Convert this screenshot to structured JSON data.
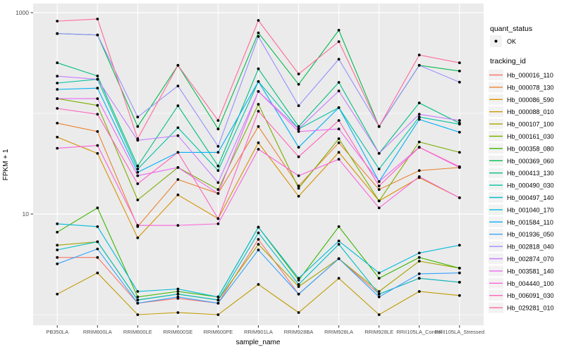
{
  "figure": {
    "xlabel": "sample_name",
    "ylabel": "FPKM + 1"
  },
  "legend": {
    "quant_status": {
      "title": "quant_status",
      "items": [
        {
          "label": "OK",
          "symbol": "black-point"
        }
      ]
    },
    "tracking": {
      "title": "tracking_id"
    }
  },
  "colors": {
    "panel_bg": "#EBEBEB",
    "grid": "#FFFFFF",
    "point": "#000000",
    "tick_text": "#4D4D4D",
    "legend_key_bg": "#F2F2F2",
    "tick_mark": "#333333"
  },
  "chart_data": {
    "type": "line",
    "title": "",
    "xlabel": "sample_name",
    "ylabel": "FPKM + 1",
    "y_scale": "log10",
    "ylim": [
      0.8,
      1200
    ],
    "grid": true,
    "legend_position": "right",
    "y_major_breaks": [
      {
        "value": 1000,
        "label": "1000"
      },
      {
        "value": 10,
        "label": "10"
      }
    ],
    "y_minor_breaks": [
      100,
      1
    ],
    "quant_status_of_all_points": "OK",
    "categories": [
      "PB350LA",
      "RRIM600LA",
      "RRIM600LE",
      "RRIM600SE",
      "RRIM600PE",
      "RRIM901LA",
      "RRIM928BA",
      "RRIM928LA",
      "RRIM928LE",
      "RRII105LA_Control",
      "RRII105LA_Stressed"
    ],
    "series": [
      {
        "name": "Hb_000016_110",
        "color": "#F8766D",
        "values": [
          3.7,
          3.7,
          1.3,
          1.45,
          1.3,
          5.6,
          1.6,
          3.6,
          1.6,
          2.3,
          2.1
        ]
      },
      {
        "name": "Hb_000078_130",
        "color": "#EA8331",
        "values": [
          80,
          66,
          7.5,
          22,
          16,
          74,
          19,
          51,
          17.5,
          27,
          29
        ]
      },
      {
        "name": "Hb_000086_590",
        "color": "#D89000",
        "values": [
          58,
          40,
          5.8,
          15.5,
          9,
          51,
          15,
          41,
          13.5,
          23,
          14.5
        ]
      },
      {
        "name": "Hb_000088_010",
        "color": "#C09B00",
        "values": [
          1.6,
          2.6,
          1.0,
          1.05,
          1.0,
          2.0,
          1.05,
          2.3,
          1.0,
          1.7,
          1.55
        ]
      },
      {
        "name": "Hb_000107_100",
        "color": "#A3A500",
        "values": [
          4.9,
          5.3,
          1.4,
          1.6,
          1.4,
          5.0,
          1.9,
          3.6,
          1.7,
          3.4,
          2.9
        ]
      },
      {
        "name": "Hb_000161_030",
        "color": "#7CAE00",
        "values": [
          140,
          120,
          13.8,
          29,
          17.5,
          123,
          18,
          56,
          13.5,
          52,
          41
        ]
      },
      {
        "name": "Hb_000358_080",
        "color": "#39B600",
        "values": [
          6.6,
          11.5,
          1.5,
          1.7,
          1.5,
          7.4,
          2.2,
          7.5,
          2.3,
          3.7,
          2.9
        ]
      },
      {
        "name": "Hb_000369_060",
        "color": "#00BB4E",
        "values": [
          620,
          600,
          74,
          300,
          70,
          630,
          194,
          670,
          74,
          300,
          263
        ]
      },
      {
        "name": "Hb_000413_130",
        "color": "#00BF7D",
        "values": [
          318,
          235,
          30,
          119,
          30,
          277,
          74,
          203,
          40,
          127,
          80
        ]
      },
      {
        "name": "Hb_000490_030",
        "color": "#00C1A3",
        "values": [
          200,
          218,
          28,
          72,
          27,
          207,
          70,
          114,
          28,
          92,
          78
        ]
      },
      {
        "name": "Hb_000497_140",
        "color": "#00BFC4",
        "values": [
          4.4,
          5.3,
          1.4,
          1.6,
          1.4,
          6.5,
          2.0,
          5.0,
          1.6,
          2.3,
          2.1
        ]
      },
      {
        "name": "Hb_001040_170",
        "color": "#00BBDA",
        "values": [
          8.0,
          7.5,
          1.7,
          1.8,
          1.5,
          7.4,
          2.3,
          5.4,
          2.6,
          4.1,
          4.9
        ]
      },
      {
        "name": "Hb_001584_110",
        "color": "#00B0F6",
        "values": [
          173,
          178,
          26,
          41,
          41,
          207,
          46,
          114,
          21,
          87,
          65
        ]
      },
      {
        "name": "Hb_001936_050",
        "color": "#35A2FF",
        "values": [
          3.2,
          4.5,
          1.3,
          1.5,
          1.3,
          4.4,
          1.6,
          3.6,
          1.5,
          2.55,
          2.6
        ]
      },
      {
        "name": "Hb_002818_040",
        "color": "#9590FF",
        "values": [
          620,
          600,
          92,
          187,
          47,
          580,
          119,
          345,
          74,
          300,
          204
        ]
      },
      {
        "name": "Hb_002874_070",
        "color": "#C77CFF",
        "values": [
          234,
          218,
          54,
          60,
          20.5,
          165,
          70,
          167,
          40,
          98,
          85
        ]
      },
      {
        "name": "Hb_003581_140",
        "color": "#E76BF3",
        "values": [
          140,
          140,
          24,
          29,
          16,
          165,
          66,
          70,
          21,
          46,
          29
        ]
      },
      {
        "name": "Hb_004440_100",
        "color": "#FA62DB",
        "values": [
          45,
          48,
          7.7,
          7.7,
          8.0,
          44,
          24,
          35,
          11.5,
          23.5,
          14.5
        ]
      },
      {
        "name": "Hb_006091_030",
        "color": "#FF62BC",
        "values": [
          112,
          98,
          20,
          41,
          9,
          105,
          37,
          85,
          19,
          46,
          29.5
        ]
      },
      {
        "name": "Hb_029281_010",
        "color": "#FF6A98",
        "values": [
          824,
          865,
          56,
          300,
          85,
          838,
          246,
          516,
          74,
          380,
          318
        ]
      }
    ]
  }
}
